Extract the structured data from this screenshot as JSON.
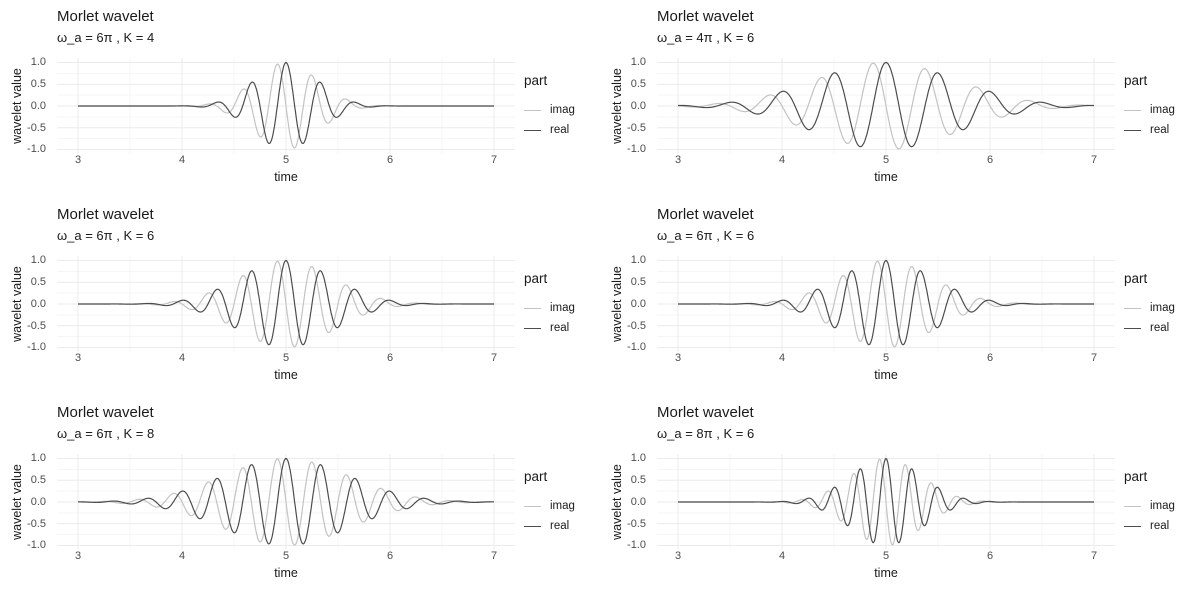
{
  "chart_data": {
    "type": "line",
    "layout": {
      "rows": 3,
      "cols": 2
    },
    "center_time": 5,
    "panels": [
      {
        "title": "Morlet wavelet",
        "subtitle": "ω_a = 6π , K = 4",
        "omega_pi": 6,
        "K": 4
      },
      {
        "title": "Morlet wavelet",
        "subtitle": "ω_a = 4π , K = 6",
        "omega_pi": 4,
        "K": 6
      },
      {
        "title": "Morlet wavelet",
        "subtitle": "ω_a = 6π , K = 6",
        "omega_pi": 6,
        "K": 6
      },
      {
        "title": "Morlet wavelet",
        "subtitle": "ω_a = 6π , K = 6",
        "omega_pi": 6,
        "K": 6
      },
      {
        "title": "Morlet wavelet",
        "subtitle": "ω_a = 6π , K = 8",
        "omega_pi": 6,
        "K": 8
      },
      {
        "title": "Morlet wavelet",
        "subtitle": "ω_a = 8π , K = 6",
        "omega_pi": 8,
        "K": 6
      }
    ],
    "x": {
      "label": "time",
      "min": 3,
      "max": 7,
      "ticks": [
        "3",
        "4",
        "5",
        "6",
        "7"
      ],
      "values": [
        3,
        4,
        5,
        6,
        7
      ],
      "minor_values": [
        3.5,
        4.5,
        5.5,
        6.5
      ]
    },
    "y": {
      "label": "wavelet value",
      "min": -1,
      "max": 1,
      "ticks": [
        "1.0",
        "0.5",
        "0.0",
        "-0.5",
        "-1.0"
      ],
      "values": [
        1,
        0.5,
        0,
        -0.5,
        -1
      ],
      "minor_values": [
        0.75,
        0.25,
        -0.25,
        -0.75
      ]
    },
    "series": [
      {
        "name": "imag",
        "color": "#c3c3c3",
        "formula": "-sin(omega*(t-5)) * exp(-(omega*(t-5))^2 / (4*K^2))"
      },
      {
        "name": "real",
        "color": "#4d4d4d",
        "formula": "cos(omega*(t-5)) * exp(-(omega*(t-5))^2 / (4*K^2))"
      }
    ],
    "legend": {
      "title": "part",
      "entries": [
        "imag",
        "real"
      ]
    },
    "grid": {
      "show": true,
      "major_color": "#ebebeb",
      "minor_color": "#f4f4f4"
    },
    "background": "#ffffff",
    "ylim_display": [
      -1.1,
      1.1
    ]
  }
}
